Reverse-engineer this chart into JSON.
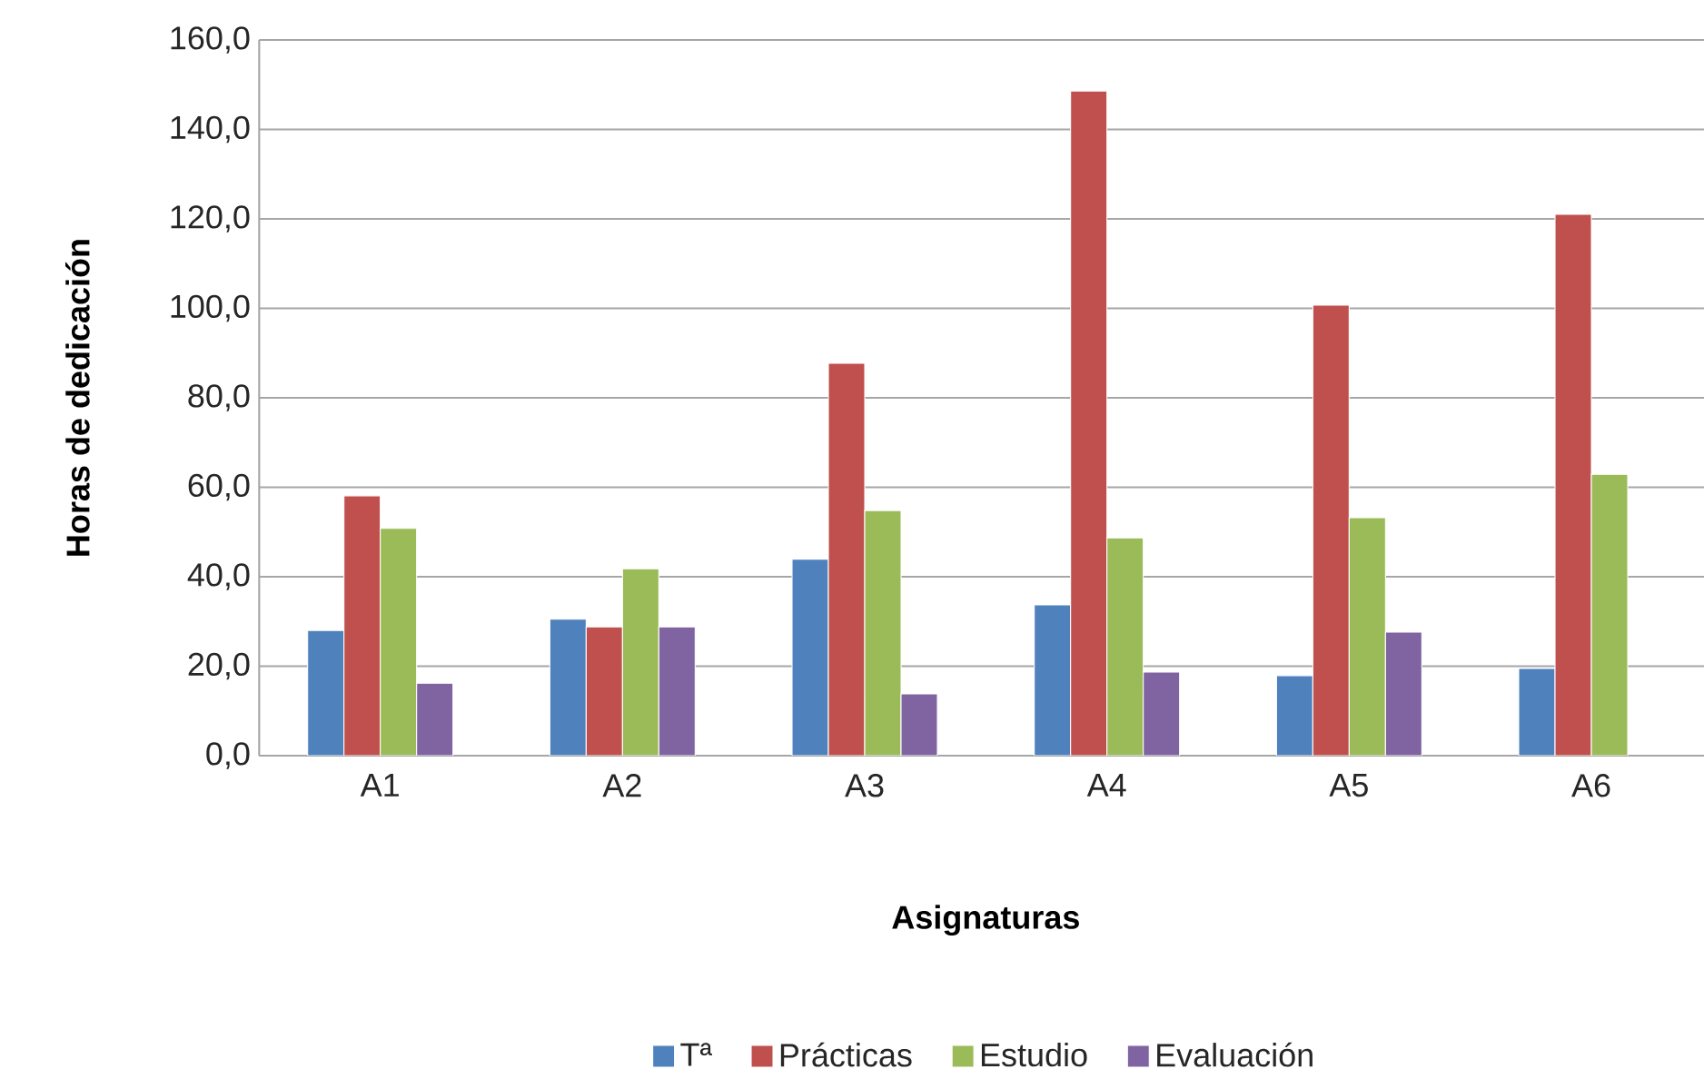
{
  "chart_data": {
    "type": "bar",
    "xlabel": "Asignaturas",
    "ylabel": "Horas de dedicación",
    "categories": [
      "A1",
      "A2",
      "A3",
      "A4",
      "A5",
      "A6"
    ],
    "series": [
      {
        "name": "Tª",
        "color": "#4f81bd",
        "values": [
          28.0,
          30.5,
          43.9,
          33.7,
          17.9,
          19.5
        ]
      },
      {
        "name": "Prácticas",
        "color": "#c0504d",
        "values": [
          58.1,
          28.8,
          87.7,
          148.6,
          100.7,
          121.0
        ]
      },
      {
        "name": "Estudio",
        "color": "#9bbb59",
        "values": [
          50.8,
          41.8,
          54.8,
          48.7,
          53.2,
          62.9
        ]
      },
      {
        "name": "Evaluación",
        "color": "#8064a2",
        "values": [
          16.2,
          28.8,
          13.8,
          18.7,
          27.6,
          null
        ]
      }
    ],
    "ylim": [
      0,
      160
    ],
    "yticks": [
      {
        "value": 0,
        "label": "0,0"
      },
      {
        "value": 20,
        "label": "20,0"
      },
      {
        "value": 40,
        "label": "40,0"
      },
      {
        "value": 60,
        "label": "60,0"
      },
      {
        "value": 80,
        "label": "80,0"
      },
      {
        "value": 100,
        "label": "100,0"
      },
      {
        "value": 120,
        "label": "120,0"
      },
      {
        "value": 140,
        "label": "140,0"
      },
      {
        "value": 160,
        "label": "160,0"
      }
    ],
    "grid": "y",
    "legend": "bottom"
  }
}
